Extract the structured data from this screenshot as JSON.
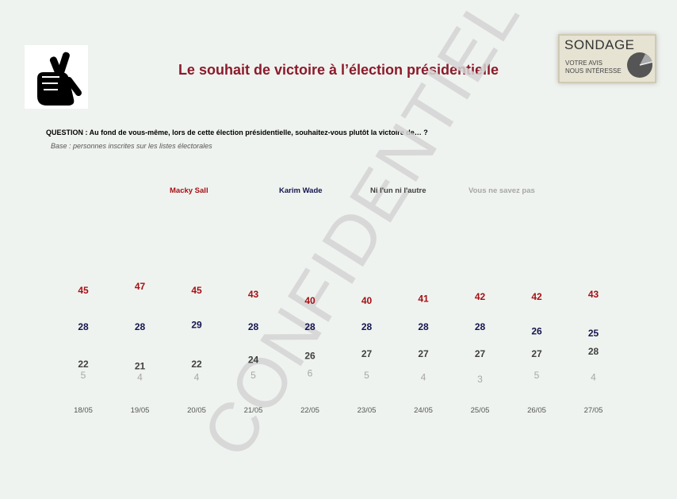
{
  "header": {
    "title": "Le souhait de victoire à l’élection présidentielle",
    "logo_text": "SONDAGE",
    "logo_tagline_1": "VOTRE AVIS",
    "logo_tagline_2": "NOUS INTÉRESSE"
  },
  "question": "QUESTION : Au fond de vous-même, lors de cette élection présidentielle, souhaitez-vous plutôt la victoire de… ?",
  "base": "Base : personnes inscrites sur les listes électorales",
  "watermark": "CONFIDENTIEL",
  "chart_data": {
    "type": "line",
    "title": "Le souhait de victoire à l’élection présidentielle",
    "categories": [
      "18/05",
      "19/05",
      "20/05",
      "21/05",
      "22/05",
      "23/05",
      "24/05",
      "25/05",
      "26/05",
      "27/05"
    ],
    "legend_position": "top",
    "grid": false,
    "series": [
      {
        "name": "Macky Sall",
        "color": "#a50f15",
        "values": [
          45,
          47,
          45,
          43,
          40,
          40,
          41,
          42,
          42,
          43
        ]
      },
      {
        "name": "Karim Wade",
        "color": "#14144f",
        "values": [
          28,
          28,
          29,
          28,
          28,
          28,
          28,
          28,
          26,
          25
        ]
      },
      {
        "name": "Ni l'un ni l'autre",
        "color": "#3f3f3f",
        "values": [
          22,
          21,
          22,
          24,
          26,
          27,
          27,
          27,
          27,
          28
        ]
      },
      {
        "name": "Vous ne savez pas",
        "color": "#a6a6a6",
        "values": [
          5,
          4,
          4,
          5,
          6,
          5,
          4,
          3,
          5,
          4
        ]
      }
    ]
  }
}
